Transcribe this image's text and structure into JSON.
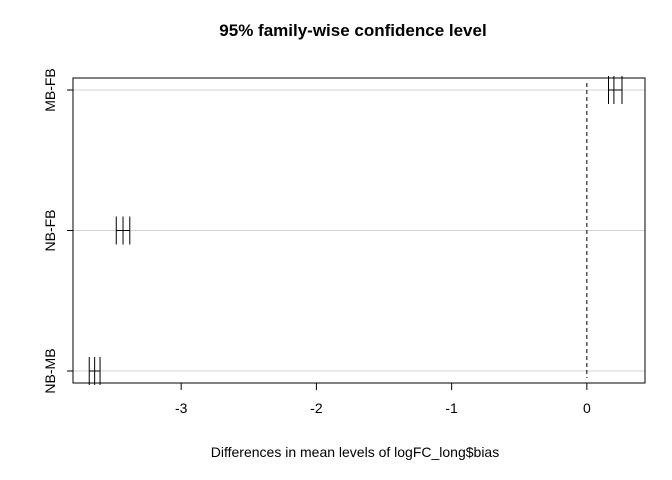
{
  "chart_data": {
    "type": "errorbar",
    "title": "95% family-wise confidence level",
    "xlabel": "Differences in mean levels of logFC_long$bias",
    "ylabel": "",
    "xlim": [
      -3.8,
      0.43
    ],
    "x_ticks": [
      -3,
      -2,
      -1,
      0
    ],
    "x_tick_labels": [
      "-3",
      "-2",
      "-1",
      "0"
    ],
    "reference_line": 0,
    "grid": "horizontal",
    "comparisons": [
      {
        "label": "MB-FB",
        "lwr": 0.16,
        "diff": 0.2,
        "upr": 0.26
      },
      {
        "label": "NB-FB",
        "lwr": -3.48,
        "diff": -3.43,
        "upr": -3.38
      },
      {
        "label": "NB-MB",
        "lwr": -3.68,
        "diff": -3.64,
        "upr": -3.6
      }
    ]
  }
}
